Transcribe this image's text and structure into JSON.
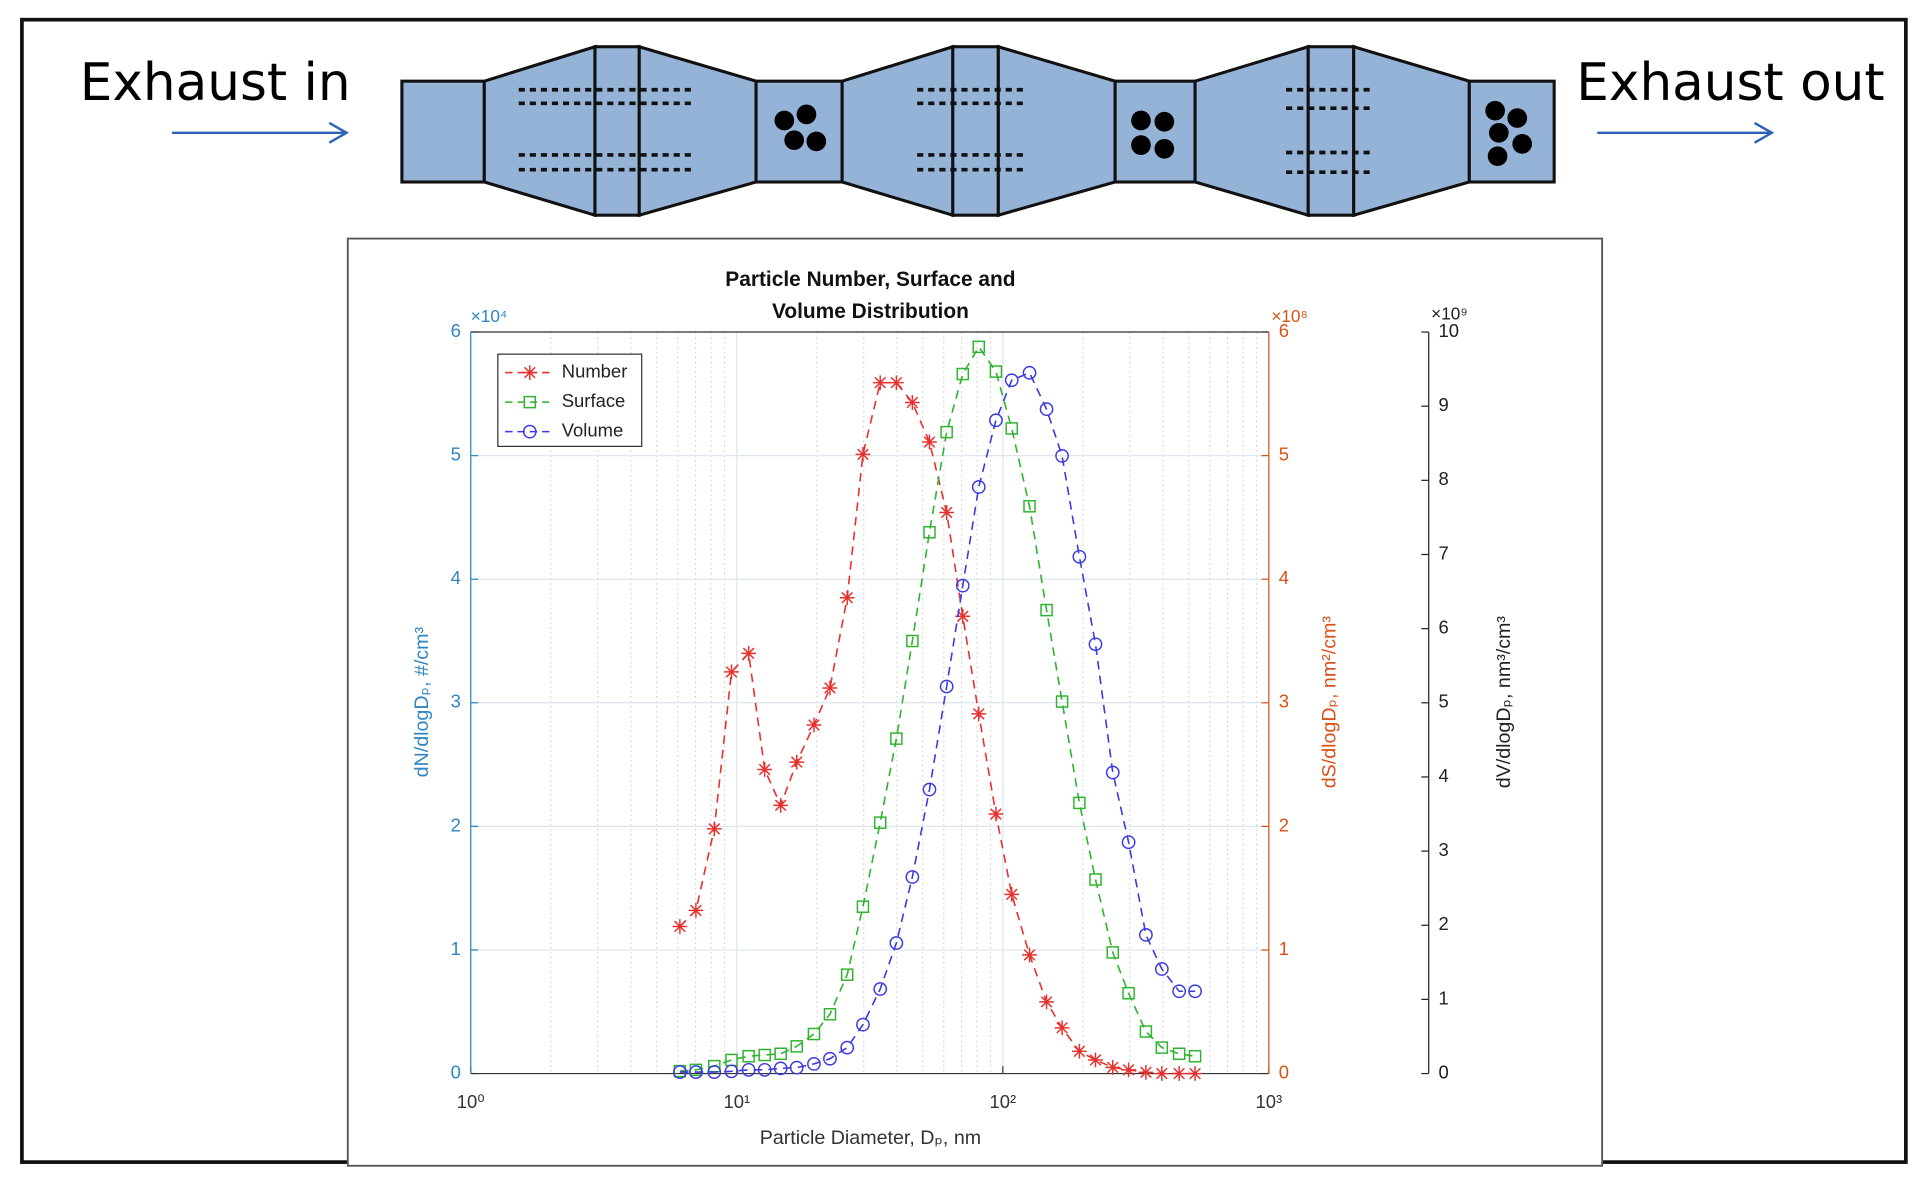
{
  "diagram": {
    "inlet_label": "Exhaust in",
    "outlet_label": "Exhaust out"
  },
  "chart_data": {
    "type": "line",
    "title": [
      "Particle Number, Surface and",
      "Volume Distribution"
    ],
    "xlabel": "Particle Diameter, Dₚ, nm",
    "ylabel": "dN/dlogDₚ, #/cm³",
    "y2label": "dS/dlogDₚ, nm²/cm³",
    "y3label": "dV/dlogDₚ, nm³/cm³",
    "ymultiplier": "×10⁴",
    "y2multiplier": "×10⁸",
    "y3multiplier": "×10⁹",
    "xscale": "log",
    "grid": true,
    "legend": "upper left",
    "xlim": [
      1,
      1000
    ],
    "xticks": [
      {
        "value": 1,
        "label": "10⁰"
      },
      {
        "value": 10,
        "label": "10¹"
      },
      {
        "value": 100,
        "label": "10²"
      },
      {
        "value": 1000,
        "label": "10³"
      }
    ],
    "ylim": [
      0,
      6
    ],
    "yticks": [
      0,
      1,
      2,
      3,
      4,
      5,
      6
    ],
    "ycolor": "#2f86c0",
    "y2lim": [
      0,
      6
    ],
    "y2ticks": [
      0,
      1,
      2,
      3,
      4,
      5,
      6
    ],
    "y2color": "#d95319",
    "y3lim": [
      0,
      10
    ],
    "y3ticks": [
      0,
      1,
      2,
      3,
      4,
      5,
      6,
      7,
      8,
      9,
      10
    ],
    "y3color": "#222222",
    "x": [
      6.11,
      7.02,
      8.23,
      9.55,
      11.08,
      12.73,
      14.62,
      16.8,
      19.5,
      22.4,
      26.0,
      29.8,
      34.6,
      39.8,
      45.7,
      53.0,
      61.5,
      70.7,
      81.2,
      94.2,
      108,
      126,
      146,
      167,
      194,
      223,
      259,
      297,
      345,
      396,
      460,
      528
    ],
    "series": [
      {
        "name": "Number",
        "color": "#e8302c",
        "marker": "asterisk",
        "axis": "y",
        "values": [
          1.19,
          1.32,
          1.98,
          3.25,
          3.4,
          2.46,
          2.17,
          2.52,
          2.82,
          3.12,
          3.85,
          5.01,
          5.59,
          5.59,
          5.43,
          5.11,
          4.54,
          3.7,
          2.91,
          2.1,
          1.45,
          0.96,
          0.58,
          0.37,
          0.18,
          0.11,
          0.05,
          0.03,
          0.01,
          0,
          0,
          0
        ]
      },
      {
        "name": "Surface",
        "color": "#2fb32f",
        "marker": "square",
        "axis": "y2",
        "values": [
          0.02,
          0.03,
          0.06,
          0.11,
          0.14,
          0.15,
          0.16,
          0.22,
          0.32,
          0.48,
          0.8,
          1.35,
          2.03,
          2.71,
          3.5,
          4.38,
          5.19,
          5.66,
          5.88,
          5.68,
          5.22,
          4.59,
          3.75,
          3.01,
          2.19,
          1.57,
          0.98,
          0.65,
          0.34,
          0.21,
          0.16,
          0.14
        ]
      },
      {
        "name": "Volume",
        "color": "#3a3ae0",
        "marker": "circle",
        "axis": "y3",
        "values": [
          0.02,
          0.02,
          0.02,
          0.03,
          0.05,
          0.05,
          0.07,
          0.08,
          0.13,
          0.2,
          0.35,
          0.66,
          1.14,
          1.76,
          2.65,
          3.83,
          5.22,
          6.58,
          7.91,
          8.81,
          9.35,
          9.45,
          8.96,
          8.33,
          6.97,
          5.79,
          4.06,
          3.12,
          1.87,
          1.41,
          1.11,
          1.11
        ]
      }
    ]
  }
}
